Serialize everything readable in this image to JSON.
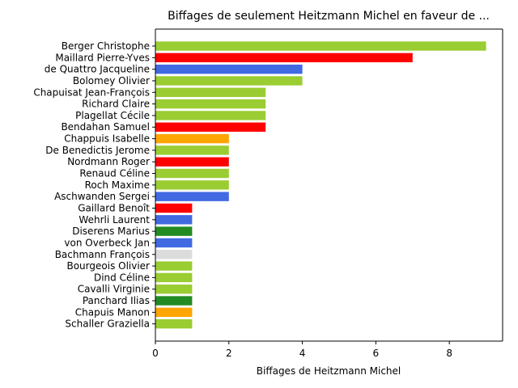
{
  "chart_data": {
    "type": "bar",
    "orientation": "horizontal",
    "title": "Biffages de seulement Heitzmann Michel en faveur de ...",
    "xlabel": "Biffages de Heitzmann Michel",
    "ylabel": "",
    "xlim": [
      0,
      9.45
    ],
    "xticks": [
      0,
      2,
      4,
      6,
      8
    ],
    "grid": false,
    "categories": [
      "Berger Christophe",
      "Maillard Pierre-Yves",
      "de Quattro Jacqueline",
      "Bolomey Olivier",
      "Chapuisat Jean-François",
      "Richard Claire",
      "Plagellat Cécile",
      "Bendahan Samuel",
      "Chappuis Isabelle",
      "De Benedictis Jerome",
      "Nordmann Roger",
      "Renaud Céline",
      "Roch Maxime",
      "Aschwanden Sergei",
      "Gaillard Benoît",
      "Wehrli Laurent",
      "Diserens Marius",
      "von Overbeck Jan",
      "Bachmann François",
      "Bourgeois Olivier",
      "Dind Céline",
      "Cavalli Virginie",
      "Panchard Ilias",
      "Chapuis Manon",
      "Schaller Graziella"
    ],
    "values": [
      9,
      7,
      4,
      4,
      3,
      3,
      3,
      3,
      2,
      2,
      2,
      2,
      2,
      2,
      1,
      1,
      1,
      1,
      1,
      1,
      1,
      1,
      1,
      1,
      1
    ],
    "colors": [
      "#9acd32",
      "#ff0000",
      "#4169e1",
      "#9acd32",
      "#9acd32",
      "#9acd32",
      "#9acd32",
      "#ff0000",
      "#ffa500",
      "#9acd32",
      "#ff0000",
      "#9acd32",
      "#9acd32",
      "#4169e1",
      "#ff0000",
      "#4169e1",
      "#228b22",
      "#4169e1",
      "#dcdcdc",
      "#9acd32",
      "#9acd32",
      "#9acd32",
      "#228b22",
      "#ffa500",
      "#9acd32"
    ]
  }
}
